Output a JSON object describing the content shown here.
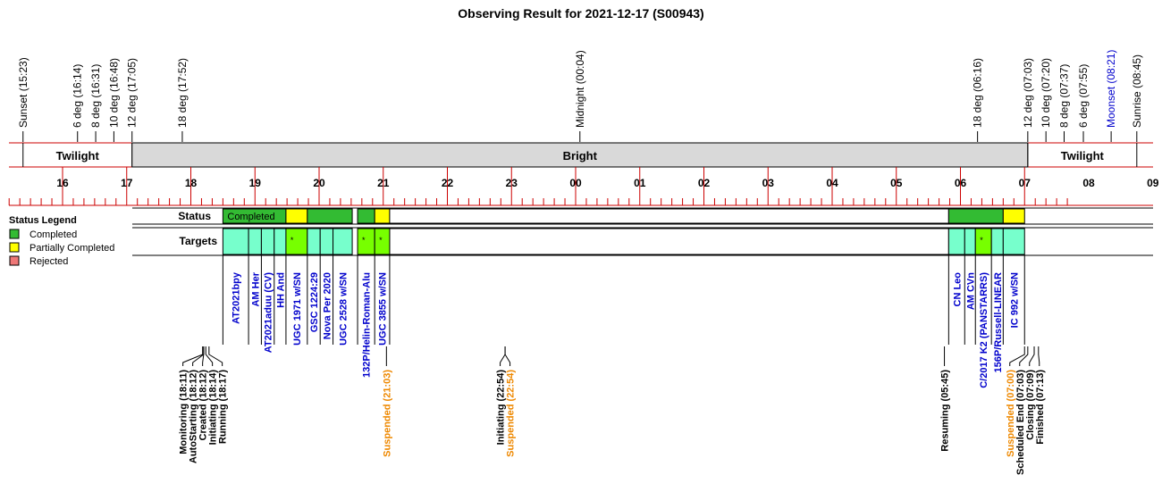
{
  "title": "Observing Result for 2021-12-17 (S00943)",
  "colors": {
    "red": "#cc0000",
    "completed": "#33bb33",
    "partial": "#ffff00",
    "rejected": "#ee7777",
    "target": "#77ffcc",
    "target_alert": "#77ff00",
    "label_blue": "#0000cc",
    "suspended": "#ee8800",
    "bright": "#d9d9d9"
  },
  "events": [
    {
      "label": "Sunset (15:23)",
      "t": "15:23",
      "color": "black"
    },
    {
      "label": "6 deg (16:14)",
      "t": "16:14",
      "color": "black"
    },
    {
      "label": "8 deg (16:31)",
      "t": "16:31",
      "color": "black"
    },
    {
      "label": "10 deg (16:48)",
      "t": "16:48",
      "color": "black"
    },
    {
      "label": "12 deg (17:05)",
      "t": "17:05",
      "color": "black"
    },
    {
      "label": "18 deg (17:52)",
      "t": "17:52",
      "color": "black"
    },
    {
      "label": "Midnight (00:04)",
      "t": "00:04",
      "color": "black"
    },
    {
      "label": "18 deg (06:16)",
      "t": "06:16",
      "color": "black"
    },
    {
      "label": "12 deg (07:03)",
      "t": "07:03",
      "color": "black"
    },
    {
      "label": "10 deg (07:20)",
      "t": "07:20",
      "color": "black"
    },
    {
      "label": "8 deg (07:37)",
      "t": "07:37",
      "color": "black"
    },
    {
      "label": "6 deg (07:55)",
      "t": "07:55",
      "color": "black"
    },
    {
      "label": "Moonset (08:21)",
      "t": "08:21",
      "color": "blue"
    },
    {
      "label": "Sunrise (08:45)",
      "t": "08:45",
      "color": "black"
    }
  ],
  "bands": [
    {
      "label": "Twilight",
      "from": "15:23",
      "to": "17:05",
      "fill": "none"
    },
    {
      "label": "Bright",
      "from": "17:05",
      "to": "07:03",
      "fill": "grey"
    },
    {
      "label": "Twilight",
      "from": "07:03",
      "to": "08:45",
      "fill": "none"
    }
  ],
  "hour_labels": [
    "16",
    "17",
    "18",
    "19",
    "20",
    "21",
    "22",
    "23",
    "00",
    "01",
    "02",
    "03",
    "04",
    "05",
    "06",
    "07",
    "08",
    "09"
  ],
  "row_labels": {
    "status": "Status",
    "targets": "Targets"
  },
  "legend": {
    "title": "Status Legend",
    "items": [
      {
        "label": "Completed",
        "color": "#33bb33"
      },
      {
        "label": "Partially Completed",
        "color": "#ffff00"
      },
      {
        "label": "Rejected",
        "color": "#ee7777"
      }
    ]
  },
  "status_blocks": [
    {
      "from": "18:30",
      "to": "19:29",
      "status": "completed",
      "label": "Completed"
    },
    {
      "from": "19:29",
      "to": "19:49",
      "status": "partial",
      "label": ""
    },
    {
      "from": "19:49",
      "to": "20:31",
      "status": "completed",
      "label": ""
    },
    {
      "from": "20:36",
      "to": "20:52",
      "status": "completed",
      "label": ""
    },
    {
      "from": "20:52",
      "to": "21:06",
      "status": "partial",
      "label": ""
    },
    {
      "from": "21:06",
      "to": "05:49",
      "status": "empty",
      "label": ""
    },
    {
      "from": "05:49",
      "to": "06:40",
      "status": "completed",
      "label": ""
    },
    {
      "from": "06:40",
      "to": "07:00",
      "status": "partial",
      "label": ""
    }
  ],
  "targets": [
    {
      "name": "AT2021bpy",
      "from": "18:30",
      "to": "18:54",
      "alert": false
    },
    {
      "name": "AM Her",
      "from": "18:54",
      "to": "19:06",
      "alert": false
    },
    {
      "name": "AT2021aduu (CV)",
      "from": "19:06",
      "to": "19:18",
      "alert": false
    },
    {
      "name": "HH And",
      "from": "19:18",
      "to": "19:29",
      "alert": false
    },
    {
      "name": "UGC 1971 w/SN",
      "from": "19:29",
      "to": "19:49",
      "alert": true
    },
    {
      "name": "GSC 1224:29",
      "from": "19:49",
      "to": "20:01",
      "alert": false
    },
    {
      "name": "Nova Per 2020",
      "from": "20:01",
      "to": "20:13",
      "alert": false
    },
    {
      "name": "UGC 2528 w/SN",
      "from": "20:13",
      "to": "20:31",
      "alert": false
    },
    {
      "name": "132P/Helin-Roman-Alu",
      "from": "20:36",
      "to": "20:52",
      "alert": true
    },
    {
      "name": "UGC 3855 w/SN",
      "from": "20:52",
      "to": "21:06",
      "alert": true
    },
    {
      "name": "CN Leo",
      "from": "05:49",
      "to": "06:04",
      "alert": false
    },
    {
      "name": "AM CVn",
      "from": "06:04",
      "to": "06:14",
      "alert": false
    },
    {
      "name": "C/2017 K2 (PANSTARRS)",
      "from": "06:14",
      "to": "06:29",
      "alert": true
    },
    {
      "name": "156P/Russell-LINEAR",
      "from": "06:29",
      "to": "06:40",
      "alert": false
    },
    {
      "name": "IC 992 w/SN",
      "from": "06:40",
      "to": "07:00",
      "alert": false
    }
  ],
  "log": [
    {
      "label": "Monitoring (18:11)",
      "t": "18:11",
      "color": "black"
    },
    {
      "label": "AutoStarting (18:12)",
      "t": "18:12",
      "color": "black"
    },
    {
      "label": "Created (18:12)",
      "t": "18:12",
      "color": "black"
    },
    {
      "label": "Initiating (18:14)",
      "t": "18:14",
      "color": "black"
    },
    {
      "label": "Running (18:17)",
      "t": "18:17",
      "color": "black"
    },
    {
      "label": "Suspended (21:03)",
      "t": "21:03",
      "color": "orange"
    },
    {
      "label": "Initiating (22:54)",
      "t": "22:54",
      "color": "black"
    },
    {
      "label": "Suspended (22:54)",
      "t": "22:54",
      "color": "orange"
    },
    {
      "label": "Resuming (05:45)",
      "t": "05:45",
      "color": "black"
    },
    {
      "label": "Suspended (07:00)",
      "t": "07:00",
      "color": "orange"
    },
    {
      "label": "Scheduled End (07:03)",
      "t": "07:03",
      "color": "black"
    },
    {
      "label": "Closing (07:09)",
      "t": "07:09",
      "color": "black"
    },
    {
      "label": "Finished (07:13)",
      "t": "07:13",
      "color": "black"
    }
  ]
}
